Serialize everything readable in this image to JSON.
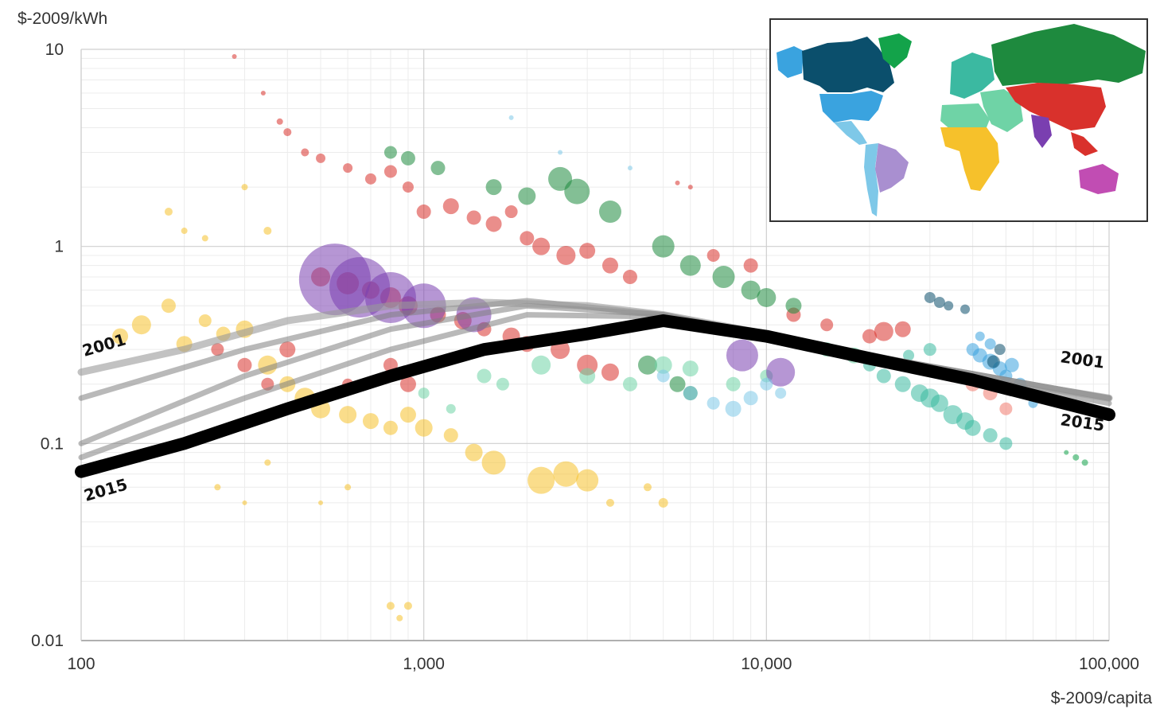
{
  "chart_data": {
    "type": "scatter",
    "title": "",
    "xlabel": "$-2009/capita",
    "ylabel": "$-2009/kWh",
    "x_scale": "log",
    "y_scale": "log",
    "xlim": [
      100,
      100000
    ],
    "ylim": [
      0.01,
      10
    ],
    "x_ticks": [
      {
        "value": 100,
        "label": "100"
      },
      {
        "value": 1000,
        "label": "1,000"
      },
      {
        "value": 10000,
        "label": "10,000"
      },
      {
        "value": 100000,
        "label": "100,000"
      }
    ],
    "y_ticks": [
      {
        "value": 10,
        "label": "10"
      },
      {
        "value": 1,
        "label": "1"
      },
      {
        "value": 0.1,
        "label": "0.1"
      },
      {
        "value": 0.01,
        "label": "0.01"
      }
    ],
    "grid": true,
    "legend": "inset world map (top-right) color-coding regions",
    "region_colors": {
      "north_america_canada": "#0b4f6c",
      "usa": "#3aa3df",
      "central_america": "#7ec8e8",
      "south_america": "#a98fd0",
      "greenland_europe": "#13a34a",
      "russia_central_asia": "#1e8a3e",
      "middle_east": "#6fd3a6",
      "africa": "#f6c12b",
      "asia": "#d9312c",
      "south_asia": "#7a3fb0",
      "oceania": "#c14db3",
      "europe_teal": "#3bb9a1"
    },
    "scatter_groups": [
      {
        "region": "africa",
        "color": "#f6c12b",
        "points": [
          [
            130,
            0.35,
            10
          ],
          [
            150,
            0.4,
            12
          ],
          [
            180,
            0.5,
            9
          ],
          [
            200,
            0.32,
            10
          ],
          [
            230,
            0.42,
            8
          ],
          [
            260,
            0.36,
            9
          ],
          [
            300,
            0.38,
            11
          ],
          [
            350,
            0.25,
            12
          ],
          [
            400,
            0.2,
            10
          ],
          [
            450,
            0.17,
            13
          ],
          [
            500,
            0.15,
            12
          ],
          [
            600,
            0.14,
            11
          ],
          [
            700,
            0.13,
            10
          ],
          [
            800,
            0.12,
            9
          ],
          [
            900,
            0.14,
            10
          ],
          [
            1000,
            0.12,
            11
          ],
          [
            1200,
            0.11,
            9
          ],
          [
            1400,
            0.09,
            11
          ],
          [
            1600,
            0.08,
            15
          ],
          [
            2200,
            0.065,
            17
          ],
          [
            2600,
            0.07,
            16
          ],
          [
            3000,
            0.065,
            14
          ],
          [
            250,
            0.06,
            4
          ],
          [
            300,
            0.05,
            3
          ],
          [
            350,
            0.08,
            4
          ],
          [
            500,
            0.05,
            3
          ],
          [
            600,
            0.06,
            4
          ],
          [
            800,
            0.015,
            5
          ],
          [
            900,
            0.015,
            5
          ],
          [
            850,
            0.013,
            4
          ],
          [
            180,
            1.5,
            5
          ],
          [
            200,
            1.2,
            4
          ],
          [
            230,
            1.1,
            4
          ],
          [
            300,
            2.0,
            4
          ],
          [
            350,
            1.2,
            5
          ],
          [
            4500,
            0.06,
            5
          ],
          [
            5000,
            0.05,
            6
          ],
          [
            3500,
            0.05,
            5
          ]
        ]
      },
      {
        "region": "asia",
        "color": "#d9312c",
        "points": [
          [
            280,
            9.2,
            3
          ],
          [
            340,
            6.0,
            3
          ],
          [
            380,
            4.3,
            4
          ],
          [
            400,
            3.8,
            5
          ],
          [
            450,
            3.0,
            5
          ],
          [
            500,
            2.8,
            6
          ],
          [
            600,
            2.5,
            6
          ],
          [
            700,
            2.2,
            7
          ],
          [
            800,
            2.4,
            8
          ],
          [
            900,
            2.0,
            7
          ],
          [
            1000,
            1.5,
            9
          ],
          [
            1200,
            1.6,
            10
          ],
          [
            1400,
            1.4,
            9
          ],
          [
            1600,
            1.3,
            10
          ],
          [
            1800,
            1.5,
            8
          ],
          [
            2000,
            1.1,
            9
          ],
          [
            2200,
            1.0,
            11
          ],
          [
            2600,
            0.9,
            12
          ],
          [
            3000,
            0.95,
            10
          ],
          [
            3500,
            0.8,
            10
          ],
          [
            4000,
            0.7,
            9
          ],
          [
            500,
            0.7,
            12
          ],
          [
            600,
            0.65,
            14
          ],
          [
            700,
            0.6,
            11
          ],
          [
            800,
            0.55,
            13
          ],
          [
            900,
            0.5,
            12
          ],
          [
            1100,
            0.45,
            10
          ],
          [
            1300,
            0.42,
            11
          ],
          [
            1500,
            0.38,
            9
          ],
          [
            1800,
            0.35,
            11
          ],
          [
            2000,
            0.32,
            10
          ],
          [
            2500,
            0.3,
            12
          ],
          [
            3000,
            0.25,
            13
          ],
          [
            3500,
            0.23,
            11
          ],
          [
            250,
            0.3,
            8
          ],
          [
            300,
            0.25,
            9
          ],
          [
            350,
            0.2,
            8
          ],
          [
            400,
            0.3,
            10
          ],
          [
            600,
            0.2,
            7
          ],
          [
            800,
            0.25,
            9
          ],
          [
            900,
            0.2,
            10
          ],
          [
            7000,
            0.9,
            8
          ],
          [
            9000,
            0.8,
            9
          ],
          [
            12000,
            0.45,
            9
          ],
          [
            15000,
            0.4,
            8
          ],
          [
            22000,
            0.37,
            12
          ],
          [
            25000,
            0.38,
            10
          ],
          [
            20000,
            0.35,
            9
          ],
          [
            5500,
            2.1,
            3
          ],
          [
            6000,
            2.0,
            3
          ]
        ]
      },
      {
        "region": "russia_central_asia",
        "color": "#1e8a3e",
        "points": [
          [
            800,
            3.0,
            8
          ],
          [
            900,
            2.8,
            9
          ],
          [
            1100,
            2.5,
            9
          ],
          [
            1600,
            2.0,
            10
          ],
          [
            2000,
            1.8,
            11
          ],
          [
            2500,
            2.2,
            15
          ],
          [
            2800,
            1.9,
            16
          ],
          [
            3500,
            1.5,
            14
          ],
          [
            5000,
            1.0,
            14
          ],
          [
            6000,
            0.8,
            13
          ],
          [
            7500,
            0.7,
            14
          ],
          [
            9000,
            0.6,
            12
          ],
          [
            10000,
            0.55,
            12
          ],
          [
            12000,
            0.5,
            10
          ],
          [
            4500,
            0.25,
            12
          ],
          [
            5500,
            0.2,
            10
          ],
          [
            6000,
            0.18,
            9
          ]
        ]
      },
      {
        "region": "middle_east",
        "color": "#6fd3a6",
        "points": [
          [
            1500,
            0.22,
            9
          ],
          [
            1700,
            0.2,
            8
          ],
          [
            2200,
            0.25,
            12
          ],
          [
            3000,
            0.22,
            10
          ],
          [
            4000,
            0.2,
            9
          ],
          [
            5000,
            0.25,
            11
          ],
          [
            6000,
            0.24,
            10
          ],
          [
            8000,
            0.2,
            9
          ],
          [
            10000,
            0.22,
            8
          ],
          [
            15000,
            0.3,
            9
          ],
          [
            18000,
            0.28,
            10
          ],
          [
            1000,
            0.18,
            7
          ],
          [
            1200,
            0.15,
            6
          ]
        ]
      },
      {
        "region": "south_asia",
        "color": "#7a3fb0",
        "points": [
          [
            550,
            0.68,
            45
          ],
          [
            650,
            0.62,
            38
          ],
          [
            800,
            0.55,
            32
          ],
          [
            1000,
            0.5,
            28
          ],
          [
            1400,
            0.45,
            22
          ],
          [
            8500,
            0.28,
            20
          ],
          [
            11000,
            0.23,
            18
          ]
        ]
      },
      {
        "region": "usa",
        "color": "#3aa3df",
        "points": [
          [
            40000,
            0.3,
            8
          ],
          [
            42000,
            0.28,
            9
          ],
          [
            45000,
            0.26,
            10
          ],
          [
            48000,
            0.24,
            9
          ],
          [
            50000,
            0.22,
            8
          ],
          [
            52000,
            0.25,
            9
          ],
          [
            55000,
            0.2,
            8
          ],
          [
            45000,
            0.32,
            7
          ],
          [
            42000,
            0.35,
            6
          ],
          [
            60000,
            0.16,
            6
          ]
        ]
      },
      {
        "region": "north_america_canada",
        "color": "#0b4f6c",
        "points": [
          [
            30000,
            0.55,
            7
          ],
          [
            32000,
            0.52,
            7
          ],
          [
            34000,
            0.5,
            6
          ],
          [
            38000,
            0.48,
            6
          ],
          [
            46000,
            0.26,
            8
          ],
          [
            48000,
            0.3,
            7
          ]
        ]
      },
      {
        "region": "central_america",
        "color": "#7ec8e8",
        "points": [
          [
            5000,
            0.22,
            8
          ],
          [
            6000,
            0.18,
            9
          ],
          [
            7000,
            0.16,
            8
          ],
          [
            8000,
            0.15,
            10
          ],
          [
            9000,
            0.17,
            9
          ],
          [
            10000,
            0.2,
            8
          ],
          [
            11000,
            0.18,
            7
          ],
          [
            1800,
            4.5,
            3
          ],
          [
            2500,
            3.0,
            3
          ],
          [
            4000,
            2.5,
            3
          ]
        ]
      },
      {
        "region": "europe_teal",
        "color": "#3bb9a1",
        "points": [
          [
            20000,
            0.25,
            8
          ],
          [
            22000,
            0.22,
            9
          ],
          [
            25000,
            0.2,
            10
          ],
          [
            28000,
            0.18,
            11
          ],
          [
            30000,
            0.17,
            12
          ],
          [
            32000,
            0.16,
            11
          ],
          [
            35000,
            0.14,
            12
          ],
          [
            38000,
            0.13,
            11
          ],
          [
            40000,
            0.12,
            10
          ],
          [
            45000,
            0.11,
            9
          ],
          [
            50000,
            0.1,
            8
          ],
          [
            30000,
            0.3,
            8
          ],
          [
            26000,
            0.28,
            7
          ]
        ]
      },
      {
        "region": "salmon",
        "color": "#f07a6e",
        "points": [
          [
            35000,
            0.22,
            8
          ],
          [
            40000,
            0.2,
            9
          ],
          [
            45000,
            0.18,
            9
          ],
          [
            50000,
            0.15,
            8
          ]
        ]
      },
      {
        "region": "greenland_europe",
        "color": "#13a34a",
        "points": [
          [
            80000,
            0.085,
            4
          ],
          [
            85000,
            0.08,
            4
          ],
          [
            75000,
            0.09,
            3
          ]
        ]
      }
    ],
    "trend_lines": {
      "year_labels": [
        "2001",
        "2015"
      ],
      "2001": [
        [
          100,
          0.23
        ],
        [
          200,
          0.3
        ],
        [
          400,
          0.42
        ],
        [
          800,
          0.5
        ],
        [
          1500,
          0.52
        ],
        [
          3000,
          0.5
        ],
        [
          5000,
          0.45
        ],
        [
          10000,
          0.36
        ],
        [
          20000,
          0.28
        ],
        [
          40000,
          0.22
        ],
        [
          100000,
          0.17
        ]
      ],
      "2015": [
        [
          100,
          0.072
        ],
        [
          200,
          0.1
        ],
        [
          400,
          0.15
        ],
        [
          800,
          0.22
        ],
        [
          1500,
          0.3
        ],
        [
          3000,
          0.36
        ],
        [
          5000,
          0.42
        ],
        [
          10000,
          0.35
        ],
        [
          20000,
          0.27
        ],
        [
          40000,
          0.21
        ],
        [
          100000,
          0.14
        ]
      ],
      "intermediate": [
        [
          [
            100,
            0.17
          ],
          [
            300,
            0.3
          ],
          [
            800,
            0.45
          ],
          [
            2000,
            0.53
          ],
          [
            5000,
            0.45
          ],
          [
            20000,
            0.28
          ],
          [
            100000,
            0.17
          ]
        ],
        [
          [
            100,
            0.1
          ],
          [
            300,
            0.22
          ],
          [
            800,
            0.38
          ],
          [
            2000,
            0.5
          ],
          [
            5000,
            0.45
          ],
          [
            20000,
            0.28
          ],
          [
            100000,
            0.17
          ]
        ],
        [
          [
            100,
            0.085
          ],
          [
            300,
            0.17
          ],
          [
            800,
            0.3
          ],
          [
            2000,
            0.45
          ],
          [
            5000,
            0.44
          ],
          [
            20000,
            0.27
          ],
          [
            100000,
            0.16
          ]
        ]
      ]
    }
  }
}
